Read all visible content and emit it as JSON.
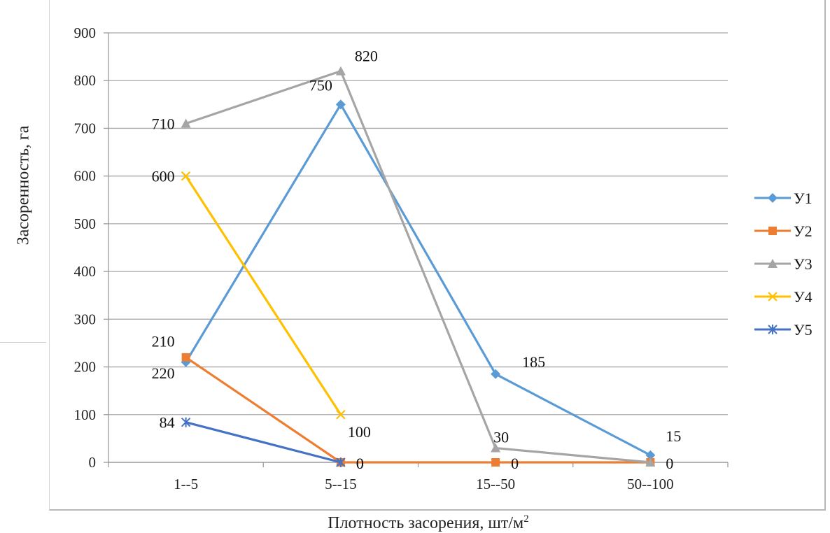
{
  "chart_data": {
    "type": "line",
    "xlabel": "Плотность засорения, шт/м",
    "xlabel_sup": "2",
    "ylabel": "Засоренность, га",
    "categories": [
      "1--5",
      "5--15",
      "15--50",
      "50--100"
    ],
    "ylim": [
      0,
      900
    ],
    "yticks": [
      0,
      100,
      200,
      300,
      400,
      500,
      600,
      700,
      800,
      900
    ],
    "grid": true,
    "legend_position": "right",
    "series": [
      {
        "name": "У1",
        "values": [
          210,
          750,
          185,
          15
        ],
        "color": "#5b9bd5",
        "marker": "diamond",
        "labels": [
          "210",
          "750",
          "185",
          "15"
        ]
      },
      {
        "name": "У2",
        "values": [
          220,
          0,
          0,
          0
        ],
        "color": "#ed7d31",
        "marker": "square",
        "labels": [
          "220",
          "0",
          "0",
          "0"
        ]
      },
      {
        "name": "У3",
        "values": [
          710,
          820,
          30,
          0
        ],
        "color": "#a5a5a5",
        "marker": "triangle",
        "labels": [
          "710",
          "820",
          "30",
          ""
        ]
      },
      {
        "name": "У4",
        "values": [
          600,
          100,
          null,
          null
        ],
        "color": "#ffc000",
        "marker": "x",
        "labels": [
          "600",
          "100",
          "",
          ""
        ]
      },
      {
        "name": "У5",
        "values": [
          84,
          0,
          null,
          null
        ],
        "color": "#4472c4",
        "marker": "star",
        "labels": [
          "84",
          "0",
          "",
          ""
        ]
      }
    ]
  }
}
